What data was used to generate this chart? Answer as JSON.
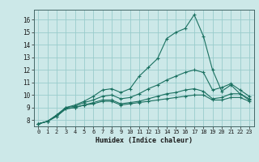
{
  "xlabel": "Humidex (Indice chaleur)",
  "bg_color": "#cce8e8",
  "grid_color": "#99cccc",
  "line_color": "#1a7060",
  "xlim": [
    -0.5,
    23.5
  ],
  "ylim": [
    7.5,
    16.8
  ],
  "xticks": [
    0,
    1,
    2,
    3,
    4,
    5,
    6,
    7,
    8,
    9,
    10,
    11,
    12,
    13,
    14,
    15,
    16,
    17,
    18,
    19,
    20,
    21,
    22,
    23
  ],
  "yticks": [
    8,
    9,
    10,
    11,
    12,
    13,
    14,
    15,
    16
  ],
  "series": [
    [
      7.7,
      7.9,
      8.3,
      8.9,
      9.0,
      9.2,
      9.3,
      9.5,
      9.5,
      9.2,
      9.3,
      9.4,
      9.5,
      9.6,
      9.7,
      9.8,
      9.9,
      10.0,
      10.0,
      9.6,
      9.6,
      9.8,
      9.8,
      9.5
    ],
    [
      7.7,
      7.9,
      8.3,
      8.9,
      9.0,
      9.2,
      9.4,
      9.6,
      9.6,
      9.3,
      9.4,
      9.5,
      9.7,
      9.9,
      10.1,
      10.2,
      10.4,
      10.5,
      10.3,
      9.7,
      9.8,
      10.1,
      10.1,
      9.7
    ],
    [
      7.7,
      7.9,
      8.4,
      9.0,
      9.1,
      9.4,
      9.6,
      9.9,
      10.0,
      9.7,
      9.8,
      10.1,
      10.5,
      10.8,
      11.2,
      11.5,
      11.8,
      12.0,
      11.8,
      10.4,
      10.6,
      10.9,
      10.4,
      9.9
    ],
    [
      7.7,
      7.9,
      8.4,
      9.0,
      9.2,
      9.5,
      9.9,
      10.4,
      10.5,
      10.2,
      10.5,
      11.5,
      12.2,
      12.9,
      14.5,
      15.0,
      15.3,
      16.4,
      14.7,
      12.0,
      10.3,
      10.8,
      10.1,
      9.6
    ]
  ]
}
